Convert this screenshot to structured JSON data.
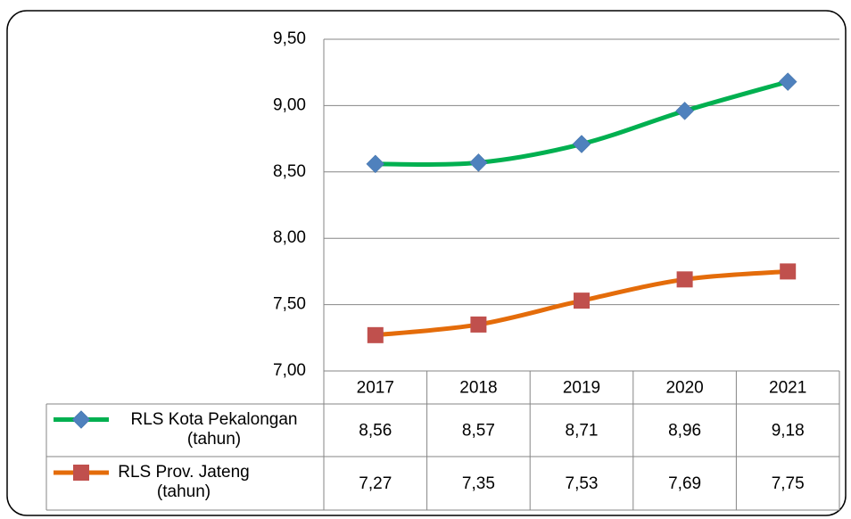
{
  "chart_data": {
    "type": "line",
    "categories": [
      "2017",
      "2018",
      "2019",
      "2020",
      "2021"
    ],
    "series": [
      {
        "name": "RLS Kota Pekalongan (tahun)",
        "color": "#00b050",
        "marker": "diamond",
        "marker_color": "#4f81bd",
        "values": [
          8.56,
          8.57,
          8.71,
          8.96,
          9.18
        ],
        "value_labels": [
          "8,56",
          "8,57",
          "8,71",
          "8,96",
          "9,18"
        ]
      },
      {
        "name": "RLS Prov. Jateng (tahun)",
        "color": "#e46c0a",
        "marker": "square",
        "marker_color": "#c0504d",
        "values": [
          7.27,
          7.35,
          7.53,
          7.69,
          7.75
        ],
        "value_labels": [
          "7,27",
          "7,35",
          "7,53",
          "7,69",
          "7,75"
        ]
      }
    ],
    "ylim": [
      7,
      9.5
    ],
    "yticks": [
      {
        "value": 7,
        "label": "7,00"
      },
      {
        "value": 7.5,
        "label": "7,50"
      },
      {
        "value": 8,
        "label": "8,00"
      },
      {
        "value": 8.5,
        "label": "8,50"
      },
      {
        "value": 9,
        "label": "9,00"
      },
      {
        "value": 9.5,
        "label": "9,50"
      }
    ],
    "grid": true,
    "smooth": true,
    "data_table": true
  }
}
